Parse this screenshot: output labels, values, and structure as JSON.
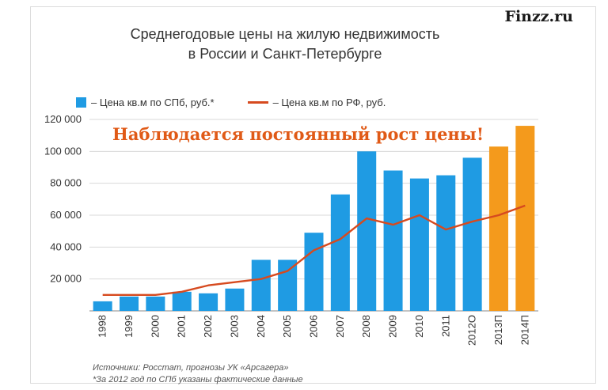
{
  "brand": "Finzz.ru",
  "chart_data": {
    "type": "bar",
    "title": "Среднегодовые цены на жилую недвижимость",
    "subtitle": "в России и Санкт-Петербурге",
    "annotation": "Наблюдается постоянный рост цены!",
    "categories": [
      "1998",
      "1999",
      "2000",
      "2001",
      "2002",
      "2003",
      "2004",
      "2005",
      "2006",
      "2007",
      "2008",
      "2009",
      "2010",
      "2011",
      "2012О",
      "2013П",
      "2014П"
    ],
    "series": [
      {
        "name": "– Цена кв.м по СПб, руб.*",
        "type": "bar",
        "values": [
          6000,
          9000,
          9000,
          12000,
          11000,
          14000,
          32000,
          32000,
          49000,
          73000,
          100000,
          88000,
          83000,
          85000,
          96000,
          103000,
          116000
        ],
        "highlight": [
          "2013П",
          "2014П"
        ]
      },
      {
        "name": "– Цена кв.м по РФ, руб.",
        "type": "line",
        "values": [
          10000,
          10000,
          10000,
          12000,
          16000,
          18000,
          20000,
          25000,
          38000,
          45000,
          58000,
          54000,
          60000,
          51000,
          56000,
          60000,
          66000
        ]
      }
    ],
    "ylim": [
      0,
      120000
    ],
    "yticks": [
      20000,
      40000,
      60000,
      80000,
      100000,
      120000
    ],
    "ytick_labels": [
      "20 000",
      "40 000",
      "60 000",
      "80 000",
      "100 000",
      "120 000"
    ],
    "grid": true,
    "legend": "top",
    "colors": {
      "bar": "#1f9be3",
      "bar_forecast": "#f49a1c",
      "line": "#d64a1f",
      "annotation": "#e05a17"
    }
  },
  "notes": [
    "Источники: Росстат, прогнозы УК «Арсагера»",
    "*За 2012 год по СПб указаны фактические данные"
  ]
}
